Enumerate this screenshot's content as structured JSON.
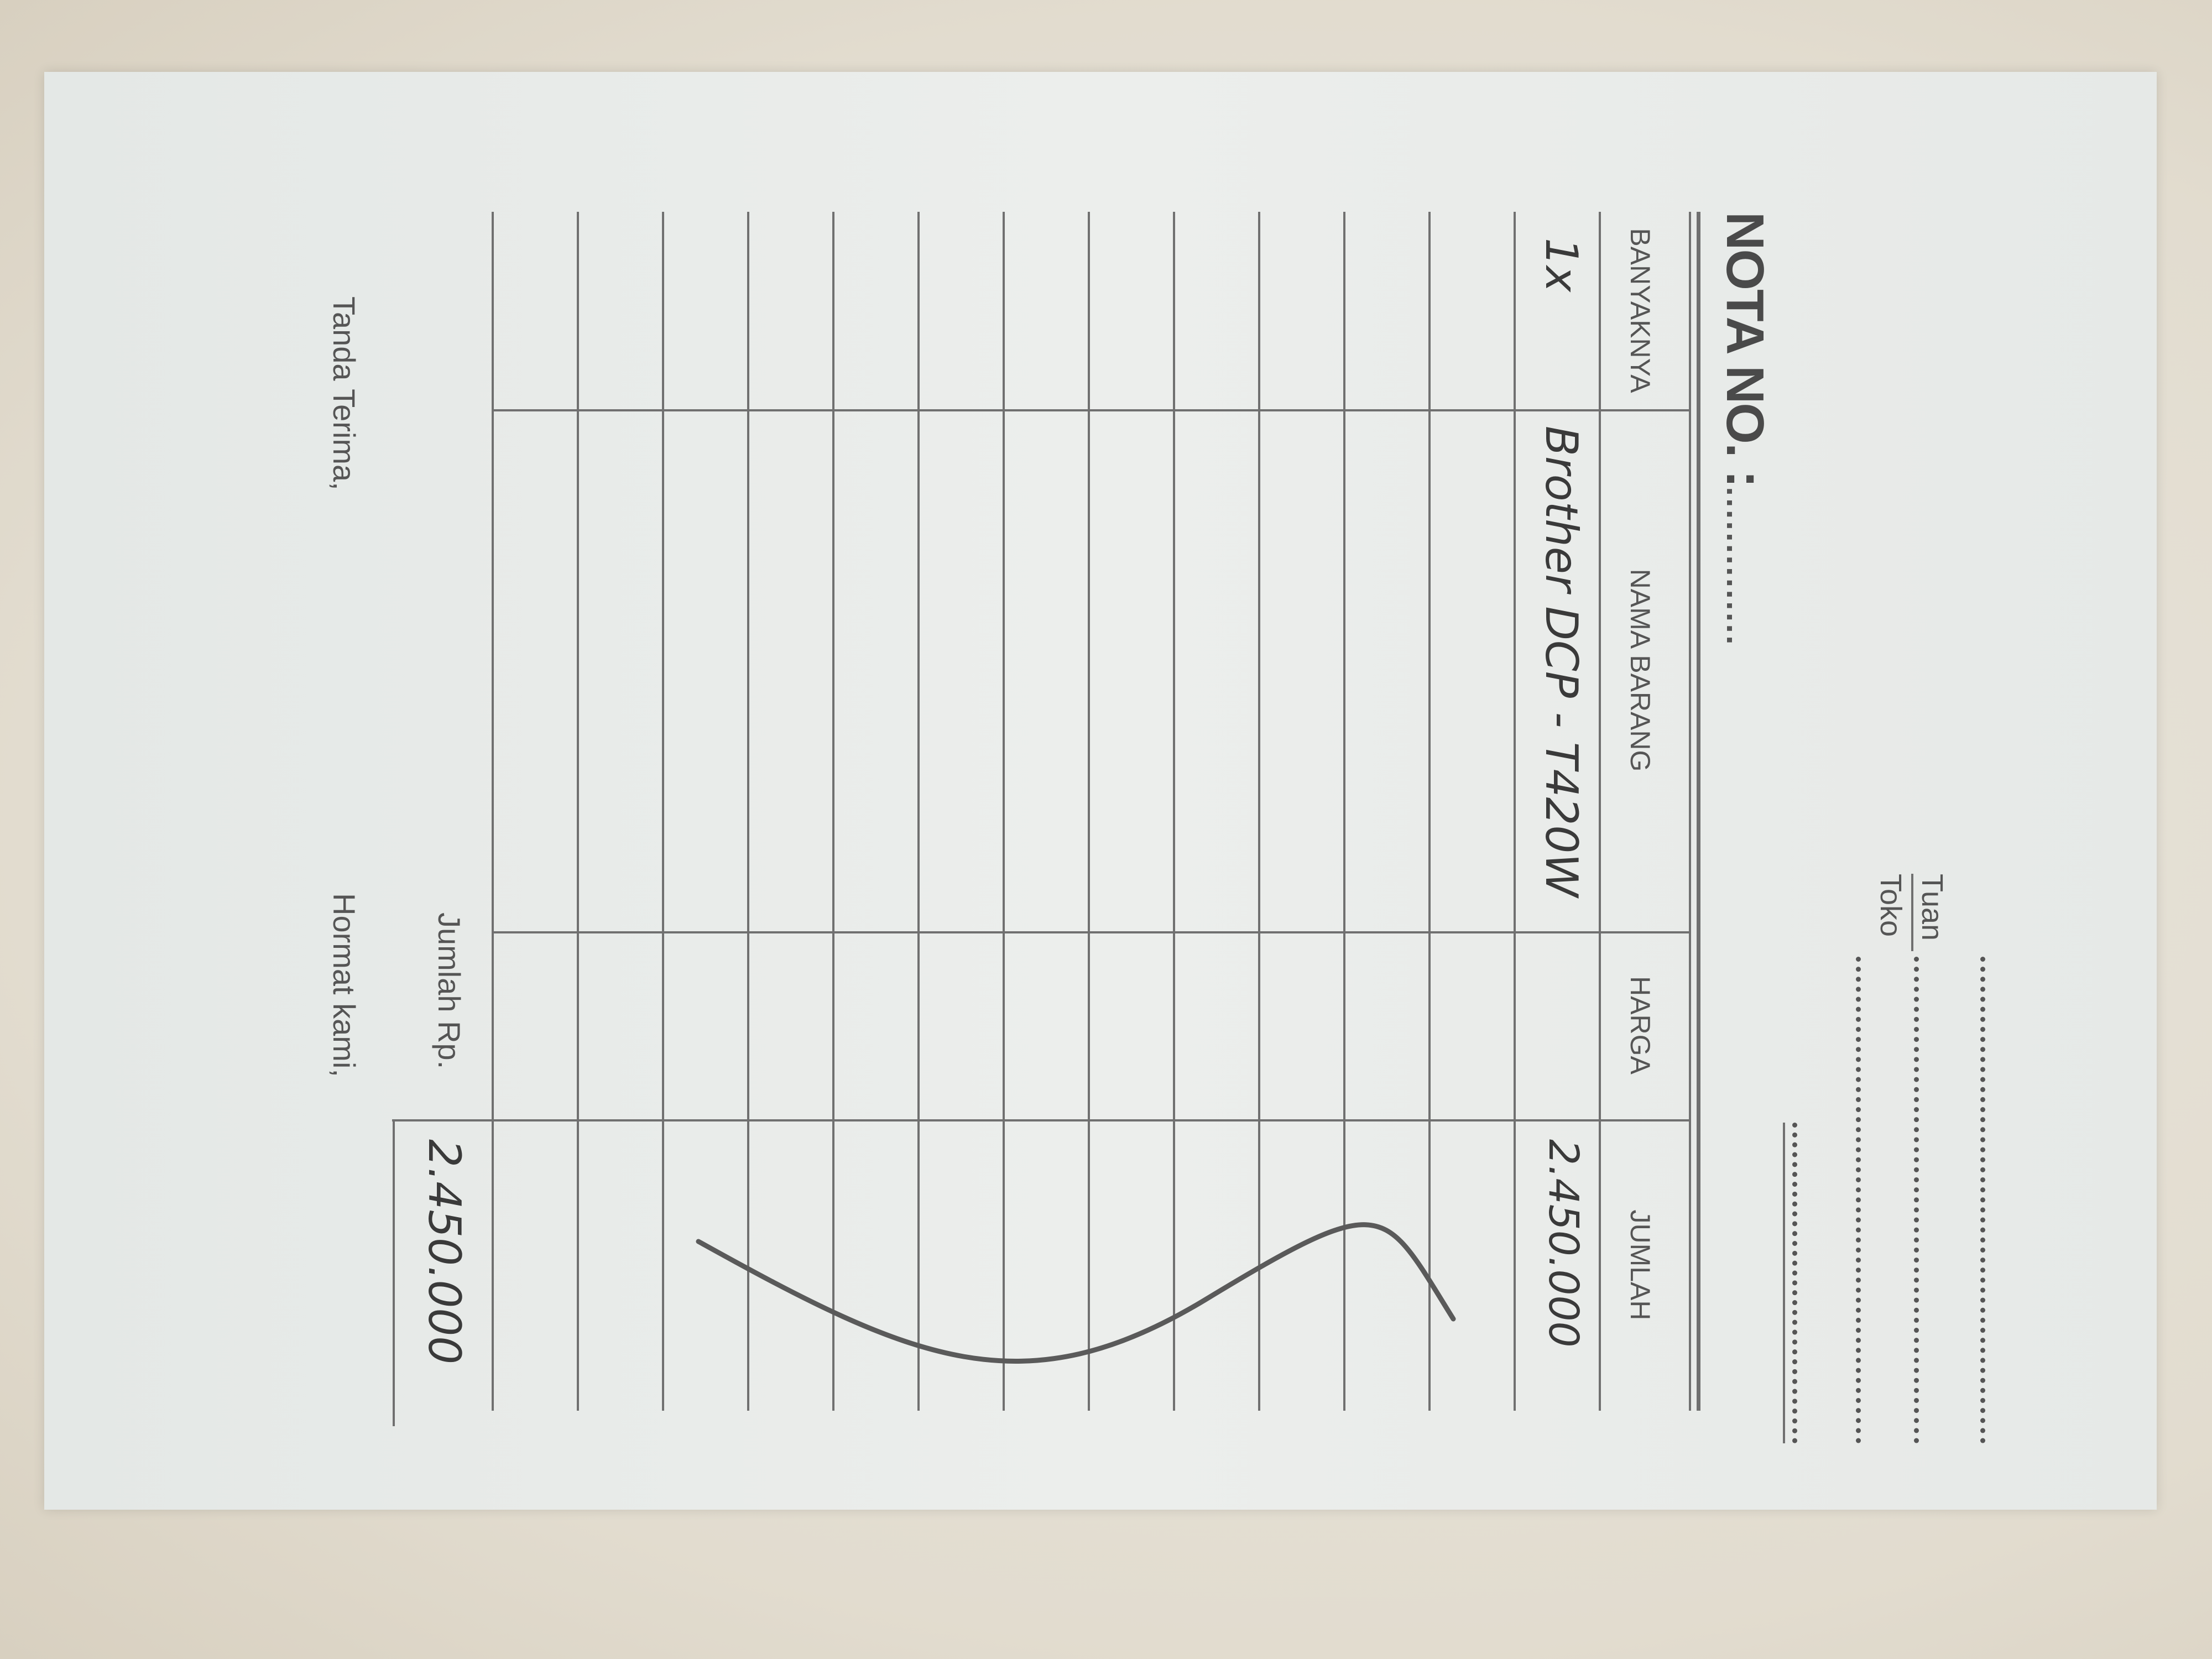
{
  "header": {
    "title": "NOTA NO. :",
    "title_dots": "..............",
    "tuan_label": "Tuan",
    "toko_label": "Toko"
  },
  "table": {
    "columns": [
      "BANYAKNYA",
      "NAMA BARANG",
      "HARGA",
      "JUMLAH"
    ],
    "rows": [
      {
        "banyaknya": "1x",
        "nama_barang": "Brother DCP - T420W",
        "harga": "",
        "jumlah": "2.450.000"
      }
    ]
  },
  "total": {
    "label": "Jumlah Rp.",
    "value": "2.450.000"
  },
  "footer": {
    "receiver": "Tanda Terima,",
    "sender": "Hormat kami,"
  },
  "colors": {
    "paper": "#e9ecea",
    "ink": "#555555",
    "background": "#e2dccf"
  }
}
